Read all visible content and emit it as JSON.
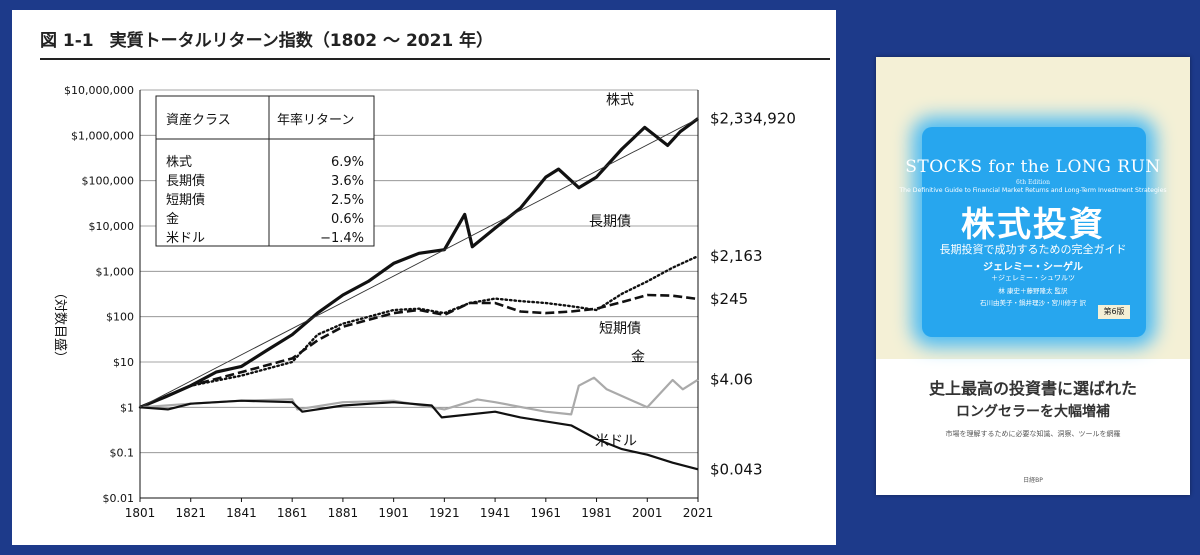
{
  "figure": {
    "number": "図 1-1",
    "title": "実質トータルリターン指数（1802 〜 2021 年）"
  },
  "table": {
    "headers": [
      "資産クラス",
      "年率リターン"
    ],
    "rows": [
      {
        "asset": "株式",
        "ret": "6.9%"
      },
      {
        "asset": "長期債",
        "ret": "3.6%"
      },
      {
        "asset": "短期債",
        "ret": "2.5%"
      },
      {
        "asset": "金",
        "ret": "0.6%"
      },
      {
        "asset": "米ドル",
        "ret": "−1.4%"
      }
    ]
  },
  "chart_data": {
    "type": "line",
    "title": "実質トータルリターン指数（1802 〜 2021 年）",
    "ylabel": "（対数目盛）",
    "xlabel": "",
    "yscale": "log",
    "xlim": [
      1801,
      2021
    ],
    "ylim": [
      0.01,
      10000000
    ],
    "grid": "horizontal",
    "x_ticks": [
      "1801",
      "1821",
      "1841",
      "1861",
      "1881",
      "1901",
      "1921",
      "1941",
      "1961",
      "1981",
      "2001",
      "2021"
    ],
    "y_ticks": [
      "$0.01",
      "$0.1",
      "$1",
      "$10",
      "$100",
      "$1,000",
      "$10,000",
      "$100,000",
      "$1,000,000",
      "$10,000,000"
    ],
    "series": [
      {
        "name": "株式",
        "end_label": "$2,334,920",
        "color": "#111111",
        "style": "solid-thick",
        "points": [
          [
            1801,
            1
          ],
          [
            1811,
            1.7
          ],
          [
            1821,
            3
          ],
          [
            1831,
            6
          ],
          [
            1841,
            8
          ],
          [
            1851,
            18
          ],
          [
            1861,
            40
          ],
          [
            1871,
            120
          ],
          [
            1881,
            300
          ],
          [
            1891,
            600
          ],
          [
            1901,
            1500
          ],
          [
            1911,
            2500
          ],
          [
            1921,
            3000
          ],
          [
            1929,
            18000
          ],
          [
            1932,
            3500
          ],
          [
            1941,
            9000
          ],
          [
            1951,
            25000
          ],
          [
            1961,
            120000
          ],
          [
            1966,
            180000
          ],
          [
            1974,
            70000
          ],
          [
            1981,
            120000
          ],
          [
            1991,
            500000
          ],
          [
            2000,
            1500000
          ],
          [
            2009,
            600000
          ],
          [
            2014,
            1200000
          ],
          [
            2021,
            2334920
          ]
        ]
      },
      {
        "name": "長期債",
        "end_label": "$2,163",
        "color": "#111111",
        "style": "dotted",
        "points": [
          [
            1801,
            1
          ],
          [
            1821,
            3
          ],
          [
            1841,
            5
          ],
          [
            1861,
            10
          ],
          [
            1871,
            40
          ],
          [
            1881,
            70
          ],
          [
            1901,
            140
          ],
          [
            1911,
            150
          ],
          [
            1921,
            120
          ],
          [
            1931,
            200
          ],
          [
            1941,
            250
          ],
          [
            1951,
            220
          ],
          [
            1961,
            200
          ],
          [
            1971,
            170
          ],
          [
            1981,
            140
          ],
          [
            1991,
            320
          ],
          [
            2001,
            600
          ],
          [
            2011,
            1200
          ],
          [
            2021,
            2163
          ]
        ]
      },
      {
        "name": "短期債",
        "end_label": "$245",
        "color": "#111111",
        "style": "dashed",
        "points": [
          [
            1801,
            1
          ],
          [
            1821,
            3
          ],
          [
            1841,
            6
          ],
          [
            1861,
            12
          ],
          [
            1871,
            30
          ],
          [
            1881,
            60
          ],
          [
            1901,
            120
          ],
          [
            1911,
            140
          ],
          [
            1921,
            110
          ],
          [
            1931,
            200
          ],
          [
            1941,
            200
          ],
          [
            1951,
            130
          ],
          [
            1961,
            120
          ],
          [
            1971,
            130
          ],
          [
            1981,
            150
          ],
          [
            1991,
            210
          ],
          [
            2001,
            300
          ],
          [
            2011,
            290
          ],
          [
            2021,
            245
          ]
        ]
      },
      {
        "name": "金",
        "end_label": "$4.06",
        "color": "#aaaaaa",
        "style": "solid",
        "points": [
          [
            1801,
            1
          ],
          [
            1821,
            1.2
          ],
          [
            1841,
            1.4
          ],
          [
            1861,
            1.5
          ],
          [
            1863,
            0.9
          ],
          [
            1881,
            1.3
          ],
          [
            1901,
            1.4
          ],
          [
            1921,
            0.9
          ],
          [
            1934,
            1.5
          ],
          [
            1941,
            1.3
          ],
          [
            1961,
            0.8
          ],
          [
            1971,
            0.7
          ],
          [
            1974,
            3
          ],
          [
            1980,
            4.5
          ],
          [
            1985,
            2.5
          ],
          [
            2001,
            1
          ],
          [
            2011,
            4
          ],
          [
            2015,
            2.5
          ],
          [
            2021,
            4.06
          ]
        ]
      },
      {
        "name": "米ドル",
        "end_label": "$0.043",
        "color": "#111111",
        "style": "solid",
        "points": [
          [
            1801,
            1
          ],
          [
            1812,
            0.9
          ],
          [
            1821,
            1.2
          ],
          [
            1841,
            1.4
          ],
          [
            1861,
            1.3
          ],
          [
            1865,
            0.8
          ],
          [
            1881,
            1.1
          ],
          [
            1901,
            1.3
          ],
          [
            1916,
            1.1
          ],
          [
            1920,
            0.6
          ],
          [
            1941,
            0.8
          ],
          [
            1951,
            0.6
          ],
          [
            1971,
            0.4
          ],
          [
            1981,
            0.2
          ],
          [
            1991,
            0.12
          ],
          [
            2001,
            0.09
          ],
          [
            2011,
            0.06
          ],
          [
            2021,
            0.043
          ]
        ]
      },
      {
        "name": "",
        "style": "trend-thin",
        "color": "#333333",
        "points": [
          [
            1801,
            1
          ],
          [
            2021,
            2334920
          ]
        ]
      }
    ]
  },
  "book": {
    "title_en": "STOCKS for the LONG RUN",
    "edition_en": "6th Edition",
    "subtitle_en": "The Definitive Guide to Financial Market Returns and Long-Term Investment Strategies",
    "title_jp": "株式投資",
    "subtitle_jp": "長期投資で成功するための完全ガイド",
    "author": "ジェレミー・シーゲル",
    "coauthor": "＋ジェレミー・シュワルツ",
    "translators1": "林 康史＋藤野隆太 監訳",
    "translators2": "石川由美子・鍋井理沙・宮川修子 訳",
    "edition_jp": "第6版",
    "catch1": "史上最高の投資書に選ばれた",
    "catch2": "ロングセラーを大幅増補",
    "desc": "市場を理解するために必要な知識、洞察、ツールを網羅",
    "publisher": "日経BP"
  }
}
